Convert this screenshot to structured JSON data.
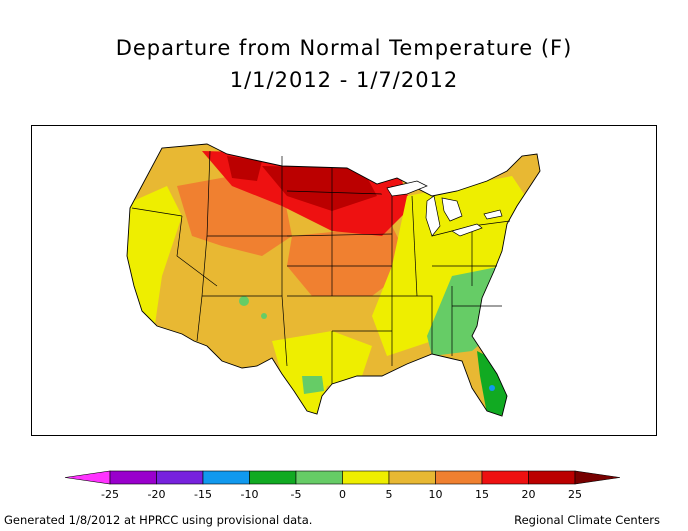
{
  "title": "Departure from Normal Temperature (F)",
  "subtitle": "1/1/2012 - 1/7/2012",
  "legend": {
    "ticks": [
      "-25",
      "-20",
      "-15",
      "-10",
      "-5",
      "0",
      "5",
      "10",
      "15",
      "20",
      "25"
    ],
    "bins": [
      {
        "range": "< -25",
        "color": "#ff33ff"
      },
      {
        "range": "-25 to -20",
        "color": "#9900cc"
      },
      {
        "range": "-20 to -15",
        "color": "#7722dd"
      },
      {
        "range": "-15 to -10",
        "color": "#1199ee"
      },
      {
        "range": "-10 to -5",
        "color": "#11aa22"
      },
      {
        "range": "-5 to 0",
        "color": "#66cc66"
      },
      {
        "range": "0 to 5",
        "color": "#eeee00"
      },
      {
        "range": "5 to 10",
        "color": "#e8b833"
      },
      {
        "range": "10 to 15",
        "color": "#f08030"
      },
      {
        "range": "15 to 20",
        "color": "#ee1111"
      },
      {
        "range": "20 to 25",
        "color": "#bb0000"
      },
      {
        "range": "> 25",
        "color": "#770000"
      }
    ]
  },
  "footer": {
    "left": "Generated 1/8/2012 at HPRCC using provisional data.",
    "right": "Regional Climate Centers"
  }
}
